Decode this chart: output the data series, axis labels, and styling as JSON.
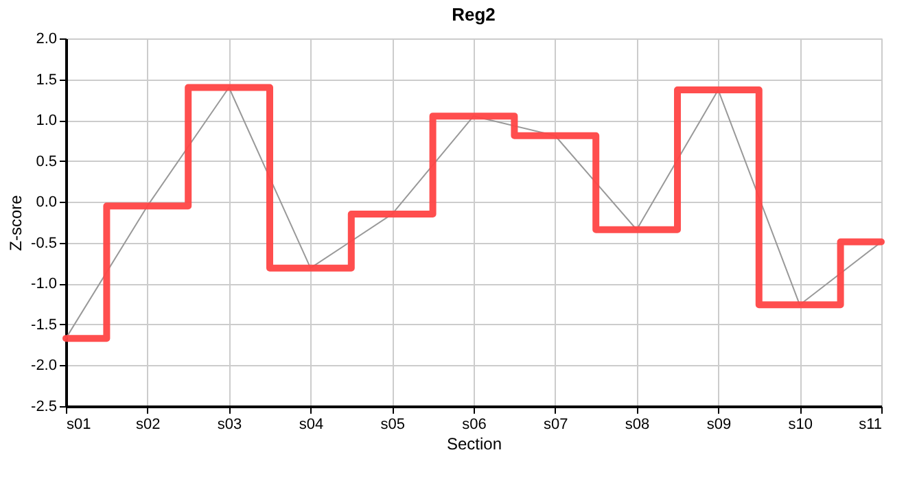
{
  "chart_data": {
    "type": "step",
    "title": "Reg2",
    "xlabel": "Section",
    "ylabel": "Z-score",
    "categories": [
      "s01",
      "s02",
      "s03",
      "s04",
      "s05",
      "s06",
      "s07",
      "s08",
      "s09",
      "s10",
      "s11"
    ],
    "series": [
      {
        "type": "line",
        "color": "#999999",
        "values": [
          -1.67,
          -0.05,
          1.4,
          -0.81,
          -0.15,
          1.05,
          0.81,
          -0.34,
          1.37,
          -1.26,
          -0.49
        ]
      },
      {
        "color": "#ff4444",
        "values": [
          -1.67,
          -0.05,
          1.4,
          -0.81,
          -0.15,
          1.05,
          0.81,
          -0.34,
          1.37,
          -1.26,
          -0.49
        ]
      }
    ],
    "ylim": [
      -2.5,
      2.0
    ],
    "yticks": [
      -2.5,
      {
        "value": -2,
        "label": "-2.0"
      },
      -1.5,
      {
        "value": -1,
        "label": "-1.0"
      },
      -0.5,
      {
        "value": 0,
        "label": "0.0"
      },
      0.5,
      {
        "value": 1,
        "label": "1.0"
      },
      1.5,
      {
        "value": 2,
        "label": "2.0"
      }
    ],
    "grid": true
  }
}
